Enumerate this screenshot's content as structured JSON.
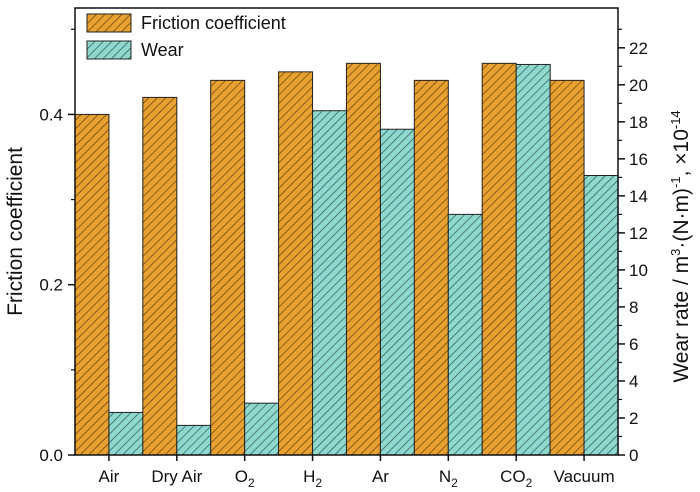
{
  "chart_data": {
    "type": "bar",
    "categories": [
      {
        "base": "Air",
        "sub": ""
      },
      {
        "base": "Dry Air",
        "sub": ""
      },
      {
        "base": "O",
        "sub": "2"
      },
      {
        "base": "H",
        "sub": "2"
      },
      {
        "base": "Ar",
        "sub": ""
      },
      {
        "base": "N",
        "sub": "2"
      },
      {
        "base": "CO",
        "sub": "2"
      },
      {
        "base": "Vacuum",
        "sub": ""
      }
    ],
    "series": [
      {
        "name": "Friction coefficient",
        "axis": "left",
        "values": [
          0.4,
          0.42,
          0.44,
          0.45,
          0.46,
          0.44,
          0.46,
          0.44
        ],
        "color": "#E8A030",
        "hatch_color": "#5a3a0a"
      },
      {
        "name": "Wear",
        "axis": "right",
        "values": [
          2.3,
          1.6,
          2.8,
          18.6,
          17.6,
          13.0,
          21.1,
          15.1
        ],
        "color": "#8FD8CE",
        "hatch_color": "#1f4f4a"
      }
    ],
    "ylabel": "Friction coefficient",
    "ylabel_right": {
      "parts": [
        {
          "t": "Wear rate / m",
          "s": ""
        },
        {
          "t": "3",
          "s": "sup"
        },
        {
          "t": "·(N·m)",
          "s": ""
        },
        {
          "t": "-1",
          "s": "sup"
        },
        {
          "t": ", ×10",
          "s": ""
        },
        {
          "t": "-14",
          "s": "sup"
        }
      ]
    },
    "ylim": [
      0,
      0.525
    ],
    "ylim_right": [
      0,
      24.15
    ],
    "yticks_major": [
      "0.0",
      "0.2",
      "0.4"
    ],
    "yticks_right": [
      "0",
      "2",
      "4",
      "6",
      "8",
      "10",
      "12",
      "14",
      "16",
      "18",
      "20",
      "22"
    ],
    "legend_position": "top-left",
    "grid": false
  }
}
